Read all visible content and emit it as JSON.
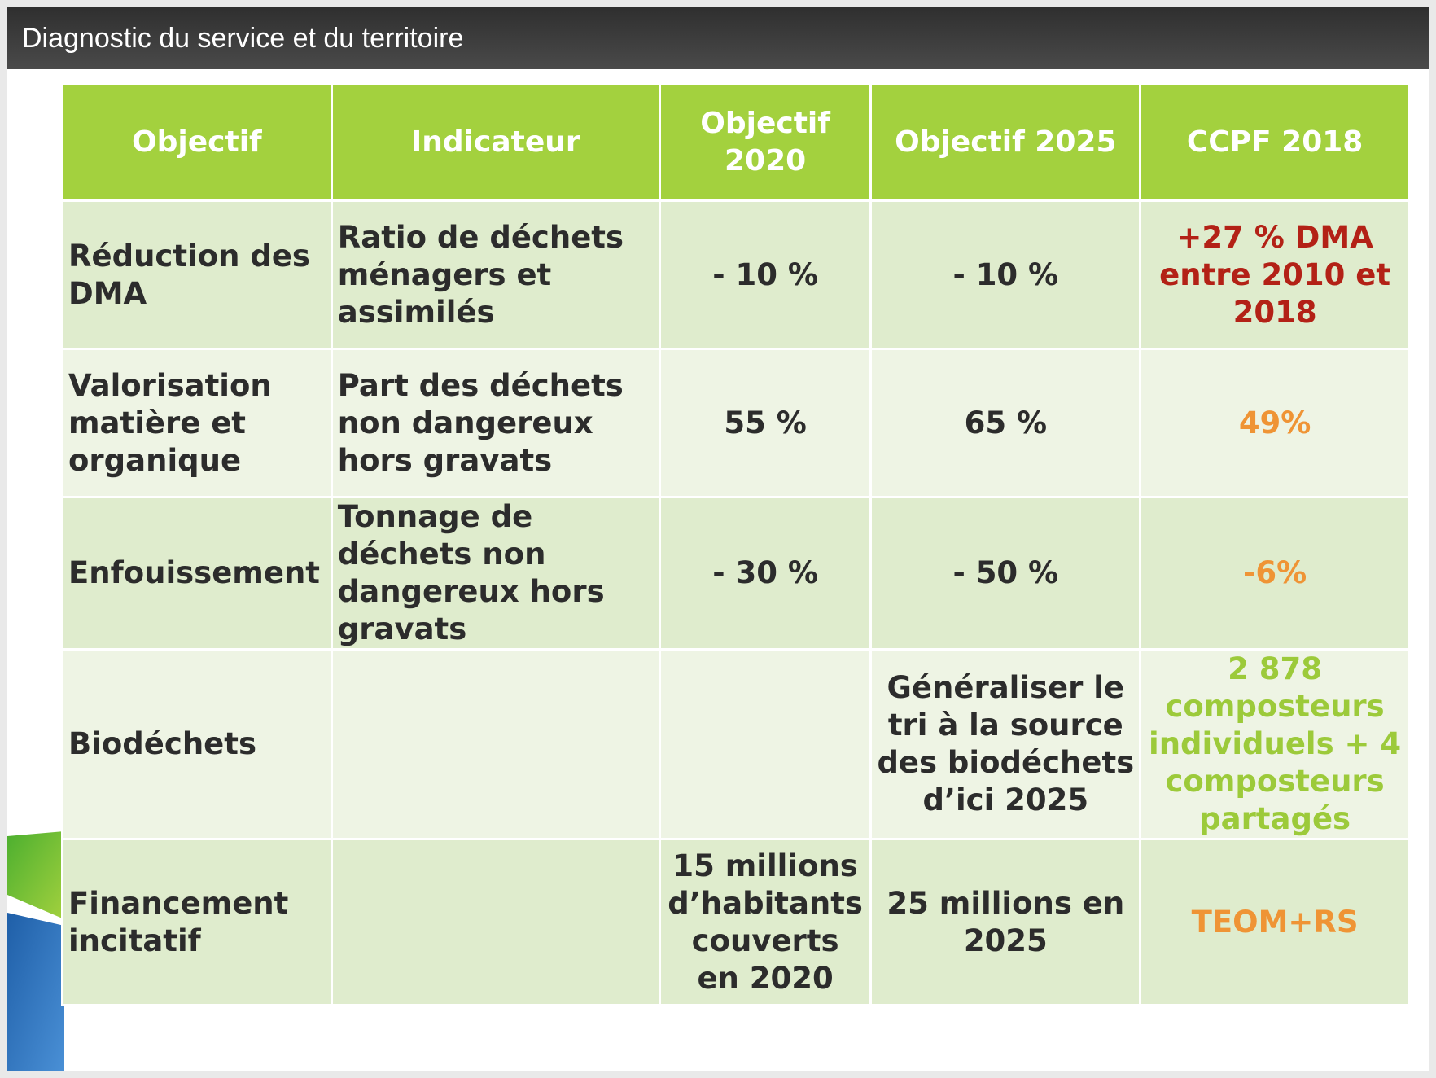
{
  "slide": {
    "title": "Diagnostic du service et du territoire"
  },
  "colors": {
    "header_bg": "#a3d13e",
    "row_dark": "#dfeccd",
    "row_light": "#eef4e4",
    "status_red": "#b32116",
    "status_orange": "#ef9435",
    "status_green": "#9cca3a"
  },
  "table": {
    "headers": [
      "Objectif",
      "Indicateur",
      "Objectif 2020",
      "Objectif 2025",
      "CCPF 2018"
    ],
    "rows": [
      {
        "objectif": "Réduction des DMA",
        "indicateur": "Ratio de déchets ménagers et assimilés",
        "obj2020": "- 10 %",
        "obj2025": "- 10 %",
        "ccpf2018": "+27 % DMA entre 2010 et 2018"
      },
      {
        "objectif": "Valorisation matière et organique",
        "indicateur": "Part des déchets non dangereux hors gravats",
        "obj2020": "55 %",
        "obj2025": "65 %",
        "ccpf2018": "49%"
      },
      {
        "objectif": "Enfouissement",
        "indicateur": "Tonnage de déchets non dangereux hors gravats",
        "obj2020": "- 30 %",
        "obj2025": "- 50 %",
        "ccpf2018": "-6%"
      },
      {
        "objectif": "Biodéchets",
        "indicateur": "",
        "obj2020": "",
        "obj2025": "Généraliser le tri à la source des biodéchets d’ici 2025",
        "ccpf2018": "2 878 composteurs individuels + 4 composteurs partagés"
      },
      {
        "objectif": "Financement incitatif",
        "indicateur": "",
        "obj2020": "15 millions d’habitants couverts en 2020",
        "obj2025": "25 millions en 2025",
        "ccpf2018": "TEOM+RS"
      }
    ]
  }
}
